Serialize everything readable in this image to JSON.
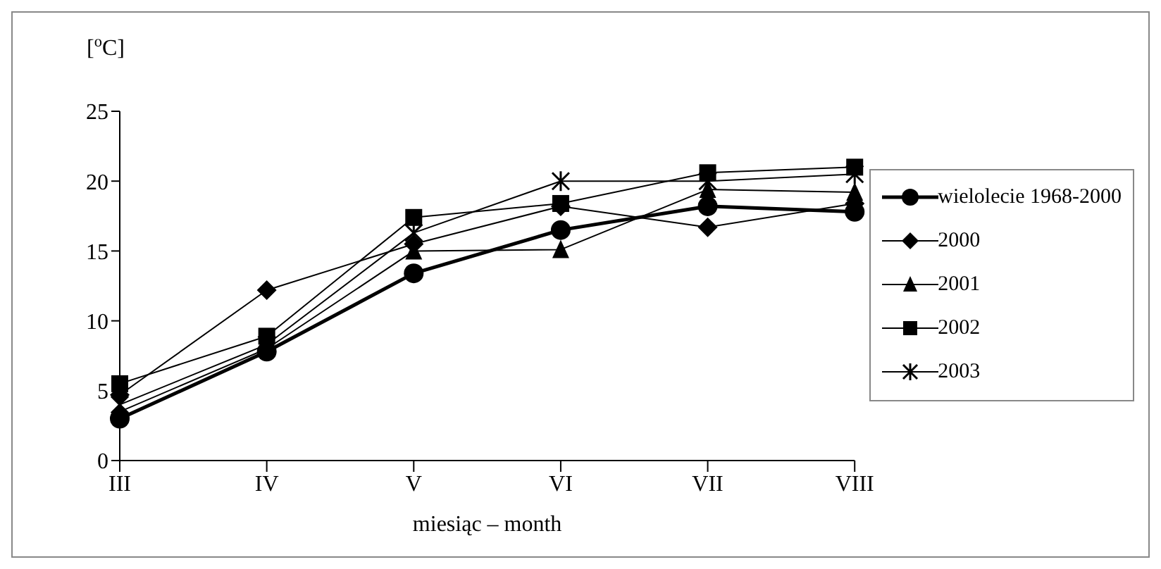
{
  "chart_data": {
    "type": "line",
    "xlabel": "miesiąc – month",
    "ylabel": "[$^{o}$C]",
    "categories": [
      "III",
      "IV",
      "V",
      "VI",
      "VII",
      "VIII"
    ],
    "series": [
      {
        "name": "wielolecie 1968-2000",
        "color": "#000000",
        "marker": "circle",
        "values": [
          3.0,
          7.8,
          13.4,
          16.5,
          18.2,
          17.8
        ]
      },
      {
        "name": "2000",
        "color": "#000000",
        "marker": "diamond",
        "values": [
          4.7,
          12.2,
          15.5,
          18.2,
          16.7,
          18.4
        ]
      },
      {
        "name": "2001",
        "color": "#000000",
        "marker": "triangle",
        "values": [
          3.5,
          8.0,
          15.0,
          15.1,
          19.4,
          19.2
        ]
      },
      {
        "name": "2002",
        "color": "#000000",
        "marker": "square",
        "values": [
          5.5,
          8.9,
          17.4,
          18.4,
          20.6,
          21.0
        ]
      },
      {
        "name": "2003",
        "color": "#000000",
        "marker": "cross",
        "values": [
          4.0,
          8.3,
          16.3,
          20.0,
          20.0,
          20.5
        ]
      }
    ],
    "ylim": [
      0,
      25
    ],
    "yticks": [
      0,
      5,
      10,
      15,
      20,
      25
    ],
    "grid": false,
    "legend": "right",
    "line_style": "solid"
  }
}
